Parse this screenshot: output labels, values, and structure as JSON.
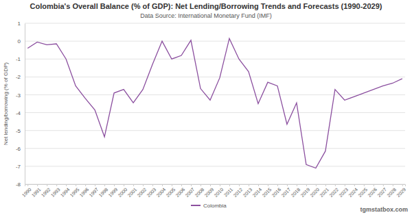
{
  "chart_data": {
    "type": "line",
    "title": "Colombia's Overall Balance (% of GDP): Net Lending/Borrowing Trends and Forecasts (1990-2029)",
    "subtitle": "Data Source: International Monetary Fund (IMF)",
    "y_label": "Net lending/borrowing (% of GDP)",
    "annotations": [
      "tgmstatbox.com"
    ],
    "categories": [
      "1990",
      "1991",
      "1992",
      "1993",
      "1994",
      "1995",
      "1996",
      "1997",
      "1998",
      "1999",
      "2000",
      "2001",
      "2002",
      "2003",
      "2004",
      "2005",
      "2006",
      "2007",
      "2008",
      "2009",
      "2010",
      "2011",
      "2012",
      "2013",
      "2014",
      "2015",
      "2016",
      "2017",
      "2018",
      "2019",
      "2020",
      "2021",
      "2022",
      "2023",
      "2024",
      "2025",
      "2026",
      "2027",
      "2028",
      "2029"
    ],
    "series": [
      {
        "name": "Colombia",
        "color": "#8b4f9f",
        "values": [
          -0.4,
          -0.05,
          -0.2,
          -0.15,
          -1.0,
          -2.5,
          -3.2,
          -3.85,
          -5.35,
          -2.9,
          -2.7,
          -3.45,
          -2.7,
          -1.3,
          0.0,
          -1.0,
          -0.8,
          0.05,
          -2.65,
          -3.3,
          -2.05,
          0.15,
          -1.0,
          -1.7,
          -3.5,
          -2.3,
          -2.5,
          -4.65,
          -3.45,
          -6.9,
          -7.1,
          -6.15,
          -2.7,
          -3.3,
          -3.1,
          -2.9,
          -2.7,
          -2.5,
          -2.35,
          -2.1
        ]
      }
    ],
    "ylim": [
      -8,
      1
    ],
    "yticks": [
      -8,
      -7,
      -6,
      -5,
      -4,
      -3,
      -2,
      -1,
      0,
      1
    ],
    "grid": true,
    "legend": "bottom"
  }
}
